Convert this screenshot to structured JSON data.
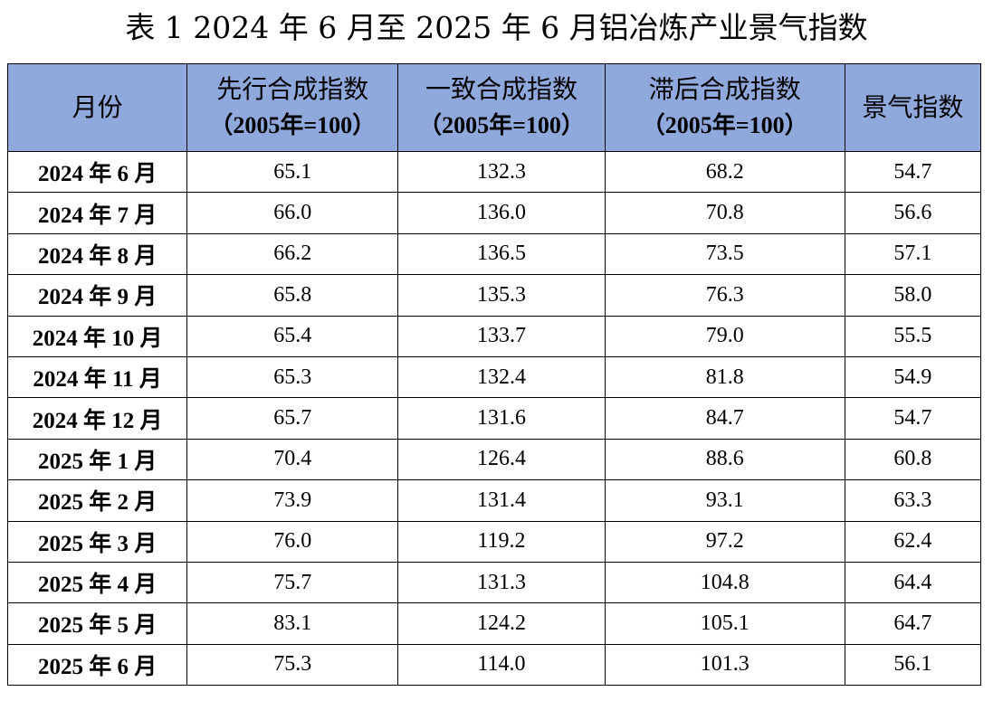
{
  "title": "表 1  2024 年 6 月至 2025 年 6 月铝冶炼产业景气指数",
  "headers": {
    "month": "月份",
    "leading": {
      "name": "先行合成指数",
      "base": "（2005年=100）"
    },
    "coincident": {
      "name": "一致合成指数",
      "base": "（2005年=100）"
    },
    "lagging": {
      "name": "滞后合成指数",
      "base": "（2005年=100）"
    },
    "prosperity": "景气指数"
  },
  "rows": [
    {
      "month": "2024 年 6 月",
      "leading": "65.1",
      "coincident": "132.3",
      "lagging": "68.2",
      "prosperity": "54.7"
    },
    {
      "month": "2024 年 7 月",
      "leading": "66.0",
      "coincident": "136.0",
      "lagging": "70.8",
      "prosperity": "56.6"
    },
    {
      "month": "2024 年 8 月",
      "leading": "66.2",
      "coincident": "136.5",
      "lagging": "73.5",
      "prosperity": "57.1"
    },
    {
      "month": "2024 年 9 月",
      "leading": "65.8",
      "coincident": "135.3",
      "lagging": "76.3",
      "prosperity": "58.0"
    },
    {
      "month": "2024 年 10 月",
      "leading": "65.4",
      "coincident": "133.7",
      "lagging": "79.0",
      "prosperity": "55.5"
    },
    {
      "month": "2024 年 11 月",
      "leading": "65.3",
      "coincident": "132.4",
      "lagging": "81.8",
      "prosperity": "54.9"
    },
    {
      "month": "2024 年 12 月",
      "leading": "65.7",
      "coincident": "131.6",
      "lagging": "84.7",
      "prosperity": "54.7"
    },
    {
      "month": "2025 年 1 月",
      "leading": "70.4",
      "coincident": "126.4",
      "lagging": "88.6",
      "prosperity": "60.8"
    },
    {
      "month": "2025 年 2 月",
      "leading": "73.9",
      "coincident": "131.4",
      "lagging": "93.1",
      "prosperity": "63.3"
    },
    {
      "month": "2025 年 3 月",
      "leading": "76.0",
      "coincident": "119.2",
      "lagging": "97.2",
      "prosperity": "62.4"
    },
    {
      "month": "2025 年 4 月",
      "leading": "75.7",
      "coincident": "131.3",
      "lagging": "104.8",
      "prosperity": "64.4"
    },
    {
      "month": "2025 年 5 月",
      "leading": "83.1",
      "coincident": "124.2",
      "lagging": "105.1",
      "prosperity": "64.7"
    },
    {
      "month": "2025 年 6 月",
      "leading": "75.3",
      "coincident": "114.0",
      "lagging": "101.3",
      "prosperity": "56.1"
    }
  ],
  "colors": {
    "header_bg": "#8fa9dc",
    "border": "#000000"
  }
}
